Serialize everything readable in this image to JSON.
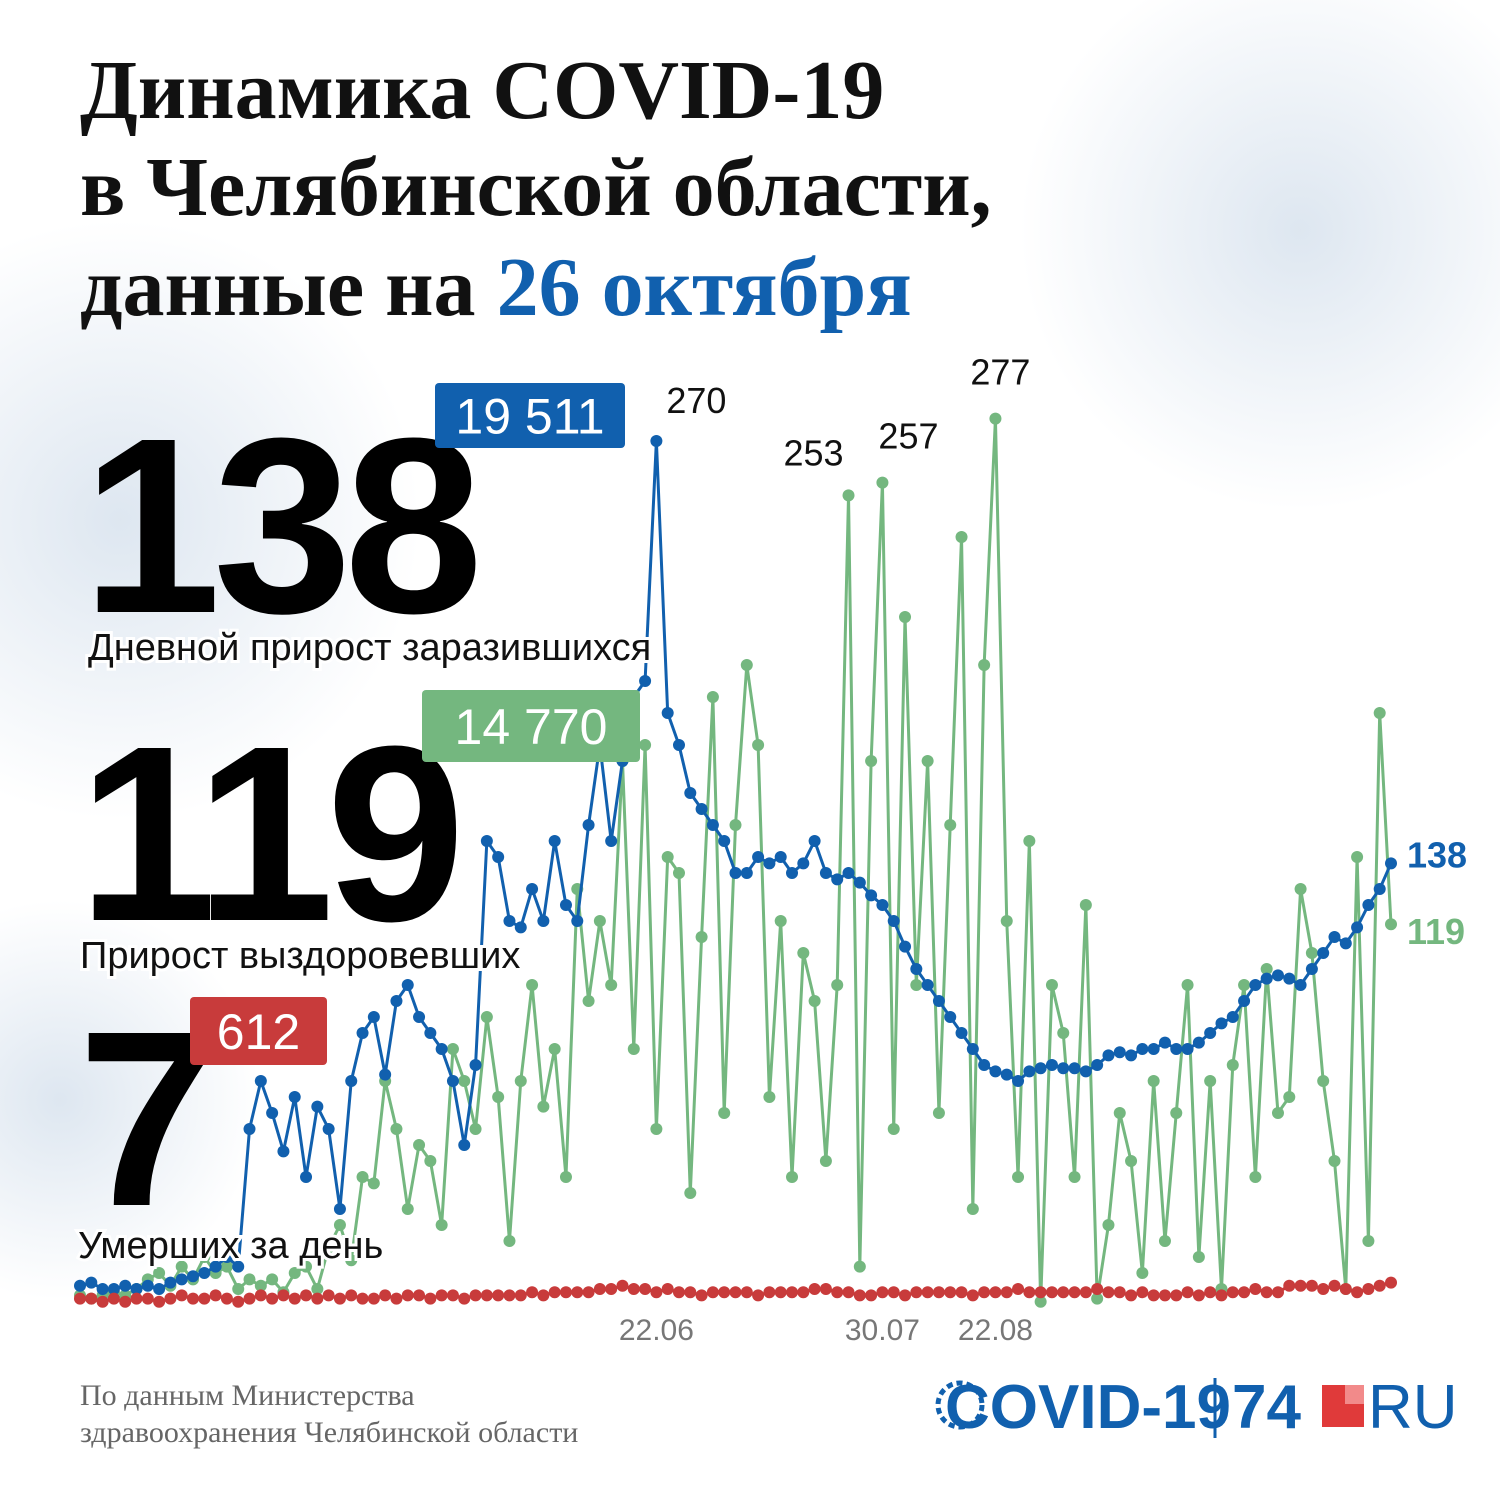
{
  "chart_data": {
    "type": "line",
    "title": [
      "Динамика COVID-19",
      "в Челябинской области,",
      "данные на"
    ],
    "title_date": "26 октября",
    "categories": [
      null,
      null,
      null,
      null,
      null,
      null,
      null,
      null,
      null,
      null,
      null,
      null,
      null,
      null,
      null,
      null,
      null,
      null,
      null,
      null,
      null,
      null,
      null,
      null,
      null,
      null,
      null,
      null,
      null,
      null,
      null,
      null,
      null,
      null,
      null,
      null,
      null,
      null,
      null,
      null,
      null,
      null,
      null,
      null,
      null,
      null,
      null,
      null,
      null,
      null,
      null,
      "22.06",
      null,
      null,
      null,
      null,
      null,
      null,
      null,
      null,
      null,
      null,
      null,
      null,
      null,
      null,
      null,
      null,
      null,
      null,
      null,
      "30.07",
      null,
      null,
      null,
      null,
      null,
      null,
      null,
      null,
      null,
      "22.08",
      null,
      null,
      null,
      null,
      null,
      null,
      null,
      null,
      null,
      null,
      null,
      null,
      null,
      null,
      null,
      null,
      null,
      null,
      null,
      null,
      null,
      null,
      null,
      null,
      null,
      null,
      null,
      null,
      null,
      null,
      null,
      null,
      null,
      null,
      null
    ],
    "ylim": [
      0,
      280
    ],
    "series": [
      {
        "name": "Дневной прирост заразившихся",
        "total": "19 511",
        "color": "#1160ae",
        "values": [
          6,
          7,
          5,
          5,
          6,
          5,
          6,
          5,
          7,
          8,
          9,
          10,
          12,
          15,
          12,
          55,
          70,
          60,
          48,
          65,
          40,
          62,
          55,
          30,
          70,
          85,
          90,
          72,
          95,
          100,
          90,
          85,
          80,
          70,
          50,
          75,
          145,
          140,
          120,
          118,
          130,
          120,
          145,
          125,
          120,
          150,
          175,
          145,
          170,
          190,
          195,
          270,
          185,
          175,
          160,
          155,
          150,
          145,
          135,
          135,
          140,
          138,
          140,
          135,
          138,
          145,
          135,
          133,
          135,
          132,
          128,
          125,
          120,
          112,
          105,
          100,
          95,
          90,
          85,
          80,
          75,
          73,
          72,
          70,
          73,
          74,
          75,
          74,
          74,
          73,
          75,
          78,
          79,
          78,
          80,
          80,
          82,
          80,
          80,
          82,
          85,
          88,
          90,
          95,
          100,
          102,
          103,
          102,
          100,
          105,
          110,
          115,
          113,
          118,
          125,
          130,
          138
        ]
      },
      {
        "name": "Прирост выздоровевших",
        "total": "14 770",
        "color": "#74b77f",
        "values": [
          3,
          2,
          3,
          4,
          3,
          5,
          8,
          10,
          6,
          12,
          8,
          15,
          10,
          12,
          5,
          8,
          6,
          8,
          4,
          10,
          12,
          5,
          18,
          25,
          14,
          40,
          38,
          70,
          55,
          30,
          50,
          45,
          25,
          80,
          70,
          55,
          90,
          65,
          20,
          70,
          100,
          62,
          80,
          40,
          130,
          95,
          120,
          100,
          170,
          80,
          175,
          55,
          140,
          135,
          35,
          115,
          190,
          60,
          150,
          200,
          175,
          65,
          120,
          40,
          110,
          95,
          45,
          100,
          253,
          12,
          170,
          257,
          55,
          215,
          100,
          170,
          60,
          150,
          240,
          30,
          200,
          277,
          120,
          40,
          145,
          1,
          100,
          85,
          40,
          125,
          2,
          25,
          60,
          45,
          10,
          70,
          20,
          60,
          100,
          15,
          70,
          5,
          75,
          100,
          40,
          105,
          60,
          65,
          130,
          110,
          70,
          45,
          5,
          140,
          20,
          185,
          119
        ]
      },
      {
        "name": "Умерших за день",
        "total": "612",
        "color": "#c83b3b",
        "values": [
          2,
          2,
          1,
          2,
          1,
          2,
          2,
          1,
          2,
          3,
          2,
          2,
          3,
          2,
          1,
          2,
          3,
          2,
          3,
          2,
          3,
          2,
          3,
          2,
          3,
          2,
          2,
          3,
          2,
          3,
          3,
          2,
          3,
          3,
          2,
          3,
          3,
          3,
          3,
          3,
          4,
          3,
          4,
          4,
          4,
          4,
          5,
          5,
          6,
          5,
          5,
          4,
          5,
          4,
          4,
          3,
          4,
          4,
          4,
          4,
          3,
          4,
          4,
          4,
          4,
          5,
          5,
          4,
          4,
          3,
          3,
          4,
          4,
          3,
          4,
          4,
          4,
          4,
          4,
          3,
          4,
          4,
          4,
          5,
          4,
          4,
          4,
          4,
          4,
          4,
          5,
          4,
          4,
          3,
          4,
          3,
          3,
          3,
          4,
          3,
          4,
          3,
          4,
          4,
          5,
          4,
          4,
          6,
          6,
          6,
          5,
          6,
          5,
          4,
          5,
          6,
          7
        ]
      }
    ],
    "source": [
      "По данным Министерства",
      "здравоохранения Челябинской области"
    ],
    "logo": {
      "left": "COVID-19",
      "number": "74",
      "right": "RU"
    }
  }
}
